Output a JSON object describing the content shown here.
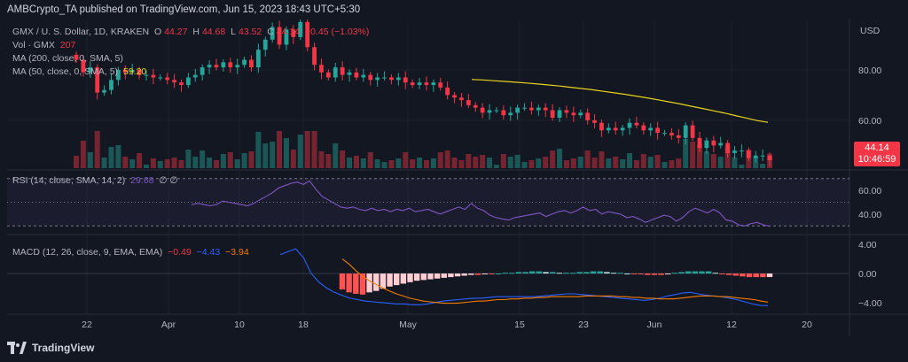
{
  "header": {
    "publisher_text": "AMBCrypto_TA published on TradingView.com, Jun 15, 2023 18:43 UTC+5:30"
  },
  "legend": {
    "symbol": "GMX / U. S. Dollar, 1D, KRAKEN",
    "ohlc": {
      "O": "44.27",
      "H": "44.68",
      "L": "43.52",
      "C": "44.14",
      "change": "−0.45 (−1.03%)"
    },
    "vol_label": "Vol · GMX",
    "vol_value": "207",
    "ma200_label": "MA (200, close, 0, SMA, 5)",
    "ma50_label": "MA (50, close, 0, SMA, 5)",
    "ma50_value": "59.20",
    "rsi_label": "RSI (14, close, SMA, 14, 2)",
    "rsi_value": "29.68",
    "rsi_extra": "∅ ∅",
    "macd_label": "MACD (12, 26, close, 9, EMA, EMA)",
    "macd_values": [
      "−0.49",
      "−4.43",
      "−3.94"
    ]
  },
  "price_badge": {
    "price": "44.14",
    "countdown": "10:46:59"
  },
  "footer": {
    "brand": "TradingView"
  },
  "colors": {
    "up": "#26a69a",
    "down": "#f23645",
    "ma50": "#e8d31c",
    "rsi": "#7e57c2",
    "macd": "#2962ff",
    "signal": "#f57c00"
  },
  "chart_data": [
    {
      "type": "candlestick",
      "title": "GMX / U. S. Dollar, 1D, KRAKEN",
      "ylabel": "USD",
      "y_ticks": [
        "80.00",
        "60.00"
      ],
      "x_ticks": [
        "22",
        "Apr",
        "10",
        "18",
        "May",
        "15",
        "23",
        "Jun",
        "12",
        "20"
      ],
      "ylim": [
        41,
        100
      ],
      "close": [
        84,
        79,
        81,
        71,
        72,
        76,
        80,
        79,
        80,
        78,
        78,
        77,
        77,
        76,
        75,
        74,
        77,
        78,
        81,
        82,
        81,
        83,
        81,
        82,
        84,
        81,
        88,
        92,
        97,
        90,
        96,
        93,
        99,
        89,
        82,
        79,
        77,
        81,
        78,
        79,
        77,
        78,
        76,
        77,
        77,
        76,
        77,
        75,
        74,
        75,
        74,
        75,
        73,
        70,
        69,
        68,
        66,
        65,
        63,
        64,
        64,
        62,
        63,
        65,
        65,
        64,
        65,
        64,
        61,
        64,
        63,
        62,
        63,
        60,
        59,
        56,
        57,
        56,
        57,
        59,
        58,
        56,
        57,
        55,
        55,
        54,
        53,
        58,
        53,
        49,
        52,
        50,
        51,
        47,
        48,
        48,
        45,
        46,
        46,
        44.14
      ],
      "ma50": [
        76.2,
        76,
        75.7,
        75.4,
        75.1,
        74.8,
        74.4,
        74,
        73.6,
        73.1,
        72.6,
        72.1,
        71.5,
        70.9,
        70.3,
        69.6,
        68.9,
        68.1,
        67.3,
        66.5,
        65.6,
        64.7,
        63.8,
        62.9,
        61.9,
        60.9,
        59.9,
        59.2
      ]
    },
    {
      "type": "bar",
      "title": "Vol · GMX",
      "value": 207
    },
    {
      "type": "line",
      "title": "RSI (14, close, SMA, 14, 2)",
      "y_ticks": [
        "60.00",
        "40.00"
      ],
      "ylim": [
        25,
        75
      ],
      "bands": [
        70,
        30
      ],
      "last": 29.68,
      "values": [
        48,
        49,
        48,
        47,
        48,
        51,
        50,
        49,
        48,
        47,
        49,
        52,
        55,
        58,
        62,
        64,
        66,
        67,
        65,
        68,
        61,
        55,
        52,
        49,
        46,
        45,
        46,
        44,
        43,
        45,
        43,
        44,
        42,
        44,
        43,
        45,
        42,
        43,
        44,
        42,
        40,
        42,
        44,
        46,
        44,
        49,
        45,
        43,
        39,
        37,
        36,
        35,
        37,
        38,
        39,
        40,
        41,
        38,
        40,
        42,
        43,
        41,
        43,
        46,
        43,
        44,
        40,
        42,
        41,
        40,
        37,
        38,
        36,
        33,
        35,
        37,
        39,
        38,
        34,
        37,
        42,
        45,
        43,
        41,
        44,
        41,
        35,
        34,
        31,
        30,
        32,
        33,
        31,
        29.68
      ]
    },
    {
      "type": "line",
      "title": "MACD (12, 26, close, 9, EMA, EMA)",
      "y_ticks": [
        "4.00",
        "0.00",
        "−4.00"
      ],
      "ylim": [
        -5,
        5
      ],
      "macd": [
        2.6,
        3,
        3.4,
        2.2,
        0,
        -1.2,
        -2,
        -2.6,
        -3,
        -3.4,
        -3.6,
        -3.8,
        -3.9,
        -4,
        -4.1,
        -4.2,
        -4.2,
        -4.3,
        -4.3,
        -4.2,
        -4,
        -3.8,
        -3.7,
        -3.6,
        -3.5,
        -3.4,
        -3.4,
        -3.3,
        -3.2,
        -3.2,
        -3.2,
        -3.2,
        -3.2,
        -3.2,
        -3.1,
        -3,
        -2.9,
        -2.8,
        -2.8,
        -2.9,
        -3,
        -3.1,
        -3.2,
        -3.3,
        -3.4,
        -3.5,
        -3.6,
        -3.7,
        -3.6,
        -3.4,
        -3.1,
        -2.9,
        -2.7,
        -2.6,
        -2.8,
        -3,
        -3.1,
        -3.2,
        -3.4,
        -3.6,
        -3.9,
        -4.2,
        -4.4,
        -4.43
      ],
      "signal": [
        2,
        1.3,
        0.4,
        -0.4,
        -1,
        -1.5,
        -2,
        -2.4,
        -2.8,
        -3.1,
        -3.4,
        -3.6,
        -3.8,
        -3.9,
        -4,
        -4.1,
        -4.1,
        -4.1,
        -4,
        -3.9,
        -3.8,
        -3.8,
        -3.7,
        -3.6,
        -3.6,
        -3.5,
        -3.5,
        -3.4,
        -3.4,
        -3.3,
        -3.3,
        -3.2,
        -3.2,
        -3.2,
        -3.2,
        -3.2,
        -3.1,
        -3.1,
        -3.1,
        -3.1,
        -3.1,
        -3.2,
        -3.2,
        -3.3,
        -3.3,
        -3.4,
        -3.4,
        -3.5,
        -3.5,
        -3.5,
        -3.4,
        -3.3,
        -3.2,
        -3.1,
        -3.1,
        -3.1,
        -3.2,
        -3.2,
        -3.3,
        -3.4,
        -3.5,
        -3.6,
        -3.8,
        -3.94
      ],
      "histogram": [
        -2.2,
        -2.6,
        -2.8,
        -2.9,
        -2.6,
        -2.4,
        -2.1,
        -1.8,
        -1.6,
        -1.4,
        -1.2,
        -1,
        -0.9,
        -0.8,
        -0.7,
        -0.6,
        -0.5,
        -0.4,
        -0.3,
        -0.2,
        -0.2,
        -0.1,
        -0.1,
        0,
        0.1,
        0.1,
        0.2,
        0.2,
        0.3,
        0.3,
        0.2,
        0.2,
        0.1,
        0.1,
        0.1,
        0.2,
        0.2,
        0.3,
        0.3,
        0.2,
        0.1,
        0.1,
        0,
        -0.1,
        -0.1,
        -0.2,
        -0.2,
        -0.2,
        -0.1,
        0.1,
        0.2,
        0.3,
        0.3,
        0.3,
        0.3,
        0.1,
        -0.1,
        -0.2,
        -0.3,
        -0.4,
        -0.5,
        -0.5,
        -0.5,
        -0.49
      ]
    }
  ]
}
